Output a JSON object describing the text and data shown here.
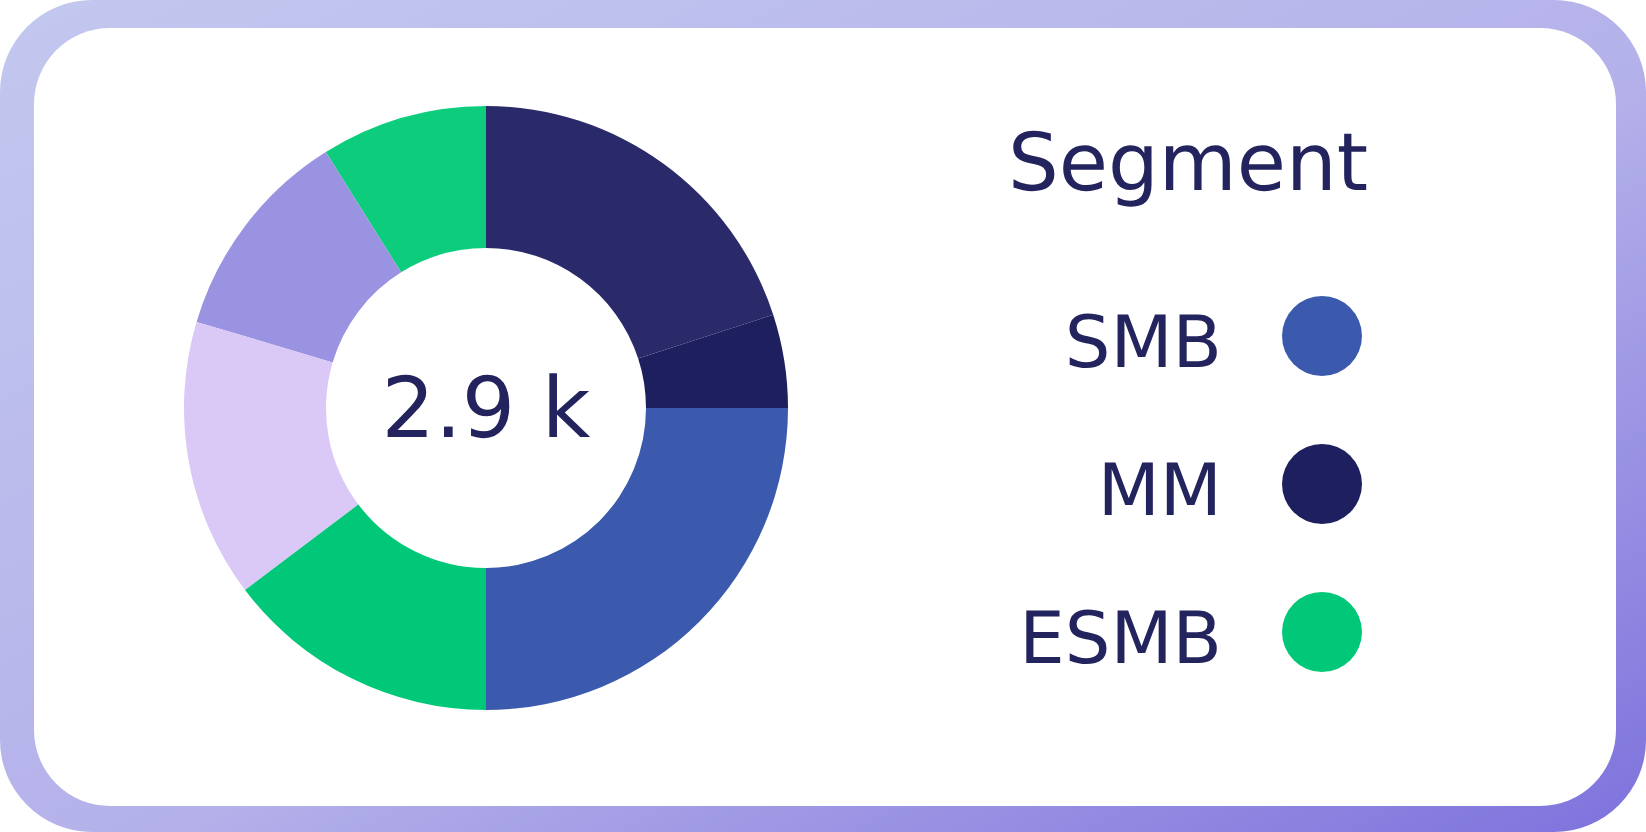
{
  "chart_data": {
    "type": "donut",
    "categories": [
      "SMB",
      "MM",
      null,
      null,
      null,
      null,
      "ESMB"
    ],
    "values": [
      25,
      5,
      20,
      8.9,
      11.5,
      14.9,
      14.7
    ],
    "colors": [
      "#3b5aad",
      "#1e1f5e",
      "#2a2a6a",
      "#0dcd7d",
      "#9a93e2",
      "#dac8f7",
      "#00c878"
    ],
    "legend_title": "Segment",
    "legend": "right",
    "annotations": [
      "2.9 k"
    ]
  }
}
